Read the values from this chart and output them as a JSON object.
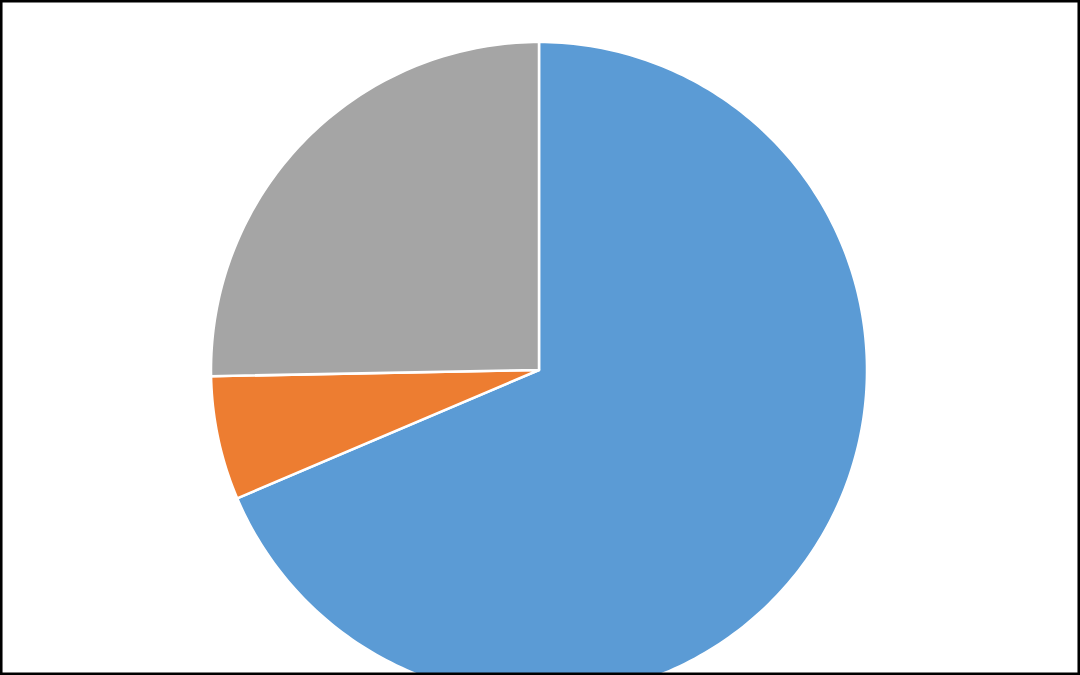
{
  "chart_data": {
    "type": "pie",
    "categories": [
      null,
      null,
      null
    ],
    "values": [
      68.6,
      6.1,
      25.3
    ],
    "colors": [
      "#5b9bd5",
      "#ed7d31",
      "#a5a5a5"
    ]
  }
}
